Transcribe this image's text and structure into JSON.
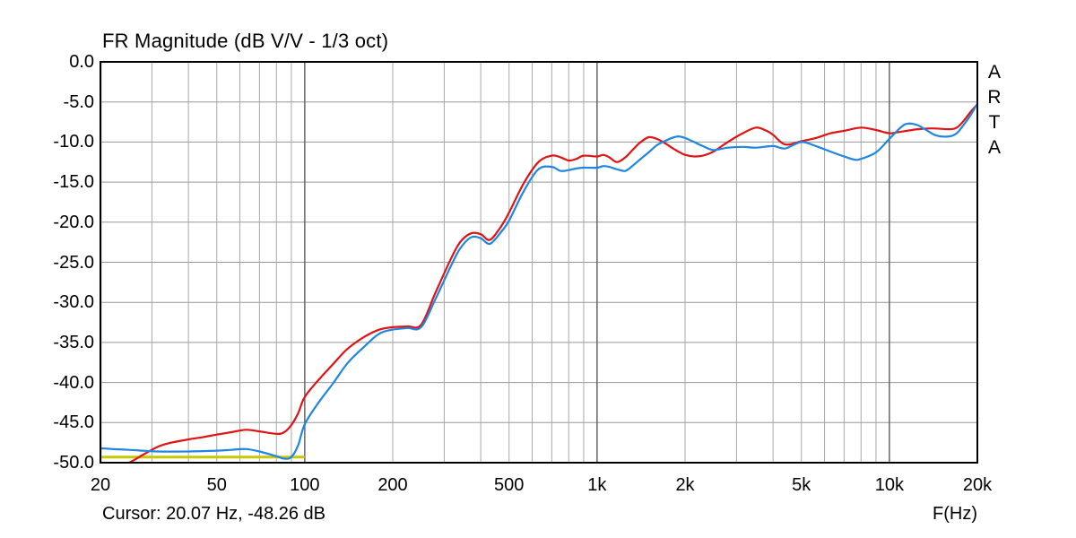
{
  "watermark": {
    "text": "ARTA"
  },
  "footer": {
    "cursor_readout": "Cursor: 20.07 Hz, -48.26 dB",
    "x_axis_label": "F(Hz)"
  },
  "colors": {
    "red_curve": "#e01212",
    "blue_curve": "#1f85e5",
    "cursor_yellow": "#c8c800",
    "grid_minor": "#a8a8a8",
    "grid_major": "#666666",
    "grid_horizontal": "#979797",
    "border": "#000000",
    "background": "#ffffff",
    "text": "#000000"
  },
  "chart_data": {
    "type": "line",
    "title": "FR Magnitude (dB V/V - 1/3 oct)",
    "xlabel": "F(Hz)",
    "ylabel": "dB V/V",
    "x_scale": "log",
    "xlim": [
      20,
      20000
    ],
    "ylim": [
      -50,
      0
    ],
    "grid": true,
    "legend_position": "none",
    "x_ticks": [
      {
        "f": 20,
        "label": "20"
      },
      {
        "f": 50,
        "label": "50"
      },
      {
        "f": 100,
        "label": "100"
      },
      {
        "f": 200,
        "label": "200"
      },
      {
        "f": 500,
        "label": "500"
      },
      {
        "f": 1000,
        "label": "1k"
      },
      {
        "f": 2000,
        "label": "2k"
      },
      {
        "f": 5000,
        "label": "5k"
      },
      {
        "f": 10000,
        "label": "10k"
      },
      {
        "f": 20000,
        "label": "20k"
      }
    ],
    "y_ticks": [
      {
        "db": 0,
        "label": "0.0"
      },
      {
        "db": -5,
        "label": "-5.0"
      },
      {
        "db": -10,
        "label": "-10.0"
      },
      {
        "db": -15,
        "label": "-15.0"
      },
      {
        "db": -20,
        "label": "-20.0"
      },
      {
        "db": -25,
        "label": "-25.0"
      },
      {
        "db": -30,
        "label": "-30.0"
      },
      {
        "db": -35,
        "label": "-35.0"
      },
      {
        "db": -40,
        "label": "-40.0"
      },
      {
        "db": -45,
        "label": "-45.0"
      },
      {
        "db": -50,
        "label": "-50.0"
      }
    ],
    "minor_gridlines_hz": [
      30,
      40,
      50,
      60,
      70,
      80,
      90,
      200,
      300,
      400,
      500,
      600,
      700,
      800,
      900,
      2000,
      3000,
      4000,
      5000,
      6000,
      7000,
      8000,
      9000
    ],
    "major_gridlines_hz": [
      100,
      1000,
      10000
    ],
    "horizontal_gridlines_db": [
      -5,
      -10,
      -15,
      -20,
      -25,
      -30,
      -35,
      -40,
      -45
    ],
    "cursor": {
      "freq_hz": 20.07,
      "level_db": -48.26
    },
    "marker_line": {
      "from_hz": 20,
      "to_hz": 100,
      "level_db": -49.3
    },
    "series": [
      {
        "name": "fr-curve-red",
        "color_key": "red_curve",
        "points": [
          [
            20,
            -50.8
          ],
          [
            22,
            -50.5
          ],
          [
            25,
            -50.0
          ],
          [
            28,
            -49.0
          ],
          [
            31.5,
            -48.0
          ],
          [
            35,
            -47.5
          ],
          [
            40,
            -47.1
          ],
          [
            45,
            -46.8
          ],
          [
            50,
            -46.5
          ],
          [
            56,
            -46.2
          ],
          [
            63,
            -45.9
          ],
          [
            70,
            -46.1
          ],
          [
            80,
            -46.4
          ],
          [
            85,
            -46.2
          ],
          [
            90,
            -45.3
          ],
          [
            95,
            -43.8
          ],
          [
            100,
            -41.8
          ],
          [
            112,
            -39.6
          ],
          [
            125,
            -37.7
          ],
          [
            140,
            -35.8
          ],
          [
            160,
            -34.3
          ],
          [
            180,
            -33.4
          ],
          [
            200,
            -33.1
          ],
          [
            225,
            -33.0
          ],
          [
            250,
            -32.8
          ],
          [
            280,
            -28.8
          ],
          [
            315,
            -24.7
          ],
          [
            340,
            -22.5
          ],
          [
            370,
            -21.4
          ],
          [
            400,
            -21.5
          ],
          [
            430,
            -22.2
          ],
          [
            470,
            -20.5
          ],
          [
            500,
            -18.8
          ],
          [
            560,
            -15.2
          ],
          [
            630,
            -12.5
          ],
          [
            700,
            -11.7
          ],
          [
            750,
            -11.9
          ],
          [
            800,
            -12.3
          ],
          [
            850,
            -12.1
          ],
          [
            900,
            -11.7
          ],
          [
            1000,
            -11.8
          ],
          [
            1050,
            -11.6
          ],
          [
            1100,
            -11.9
          ],
          [
            1170,
            -12.5
          ],
          [
            1250,
            -11.9
          ],
          [
            1330,
            -10.9
          ],
          [
            1400,
            -10.1
          ],
          [
            1500,
            -9.4
          ],
          [
            1600,
            -9.6
          ],
          [
            1700,
            -10.1
          ],
          [
            1800,
            -10.7
          ],
          [
            1900,
            -11.2
          ],
          [
            2000,
            -11.6
          ],
          [
            2150,
            -11.8
          ],
          [
            2300,
            -11.7
          ],
          [
            2500,
            -11.2
          ],
          [
            2800,
            -10.0
          ],
          [
            3150,
            -8.9
          ],
          [
            3500,
            -8.2
          ],
          [
            3800,
            -8.6
          ],
          [
            4000,
            -9.1
          ],
          [
            4400,
            -10.3
          ],
          [
            5000,
            -9.9
          ],
          [
            5600,
            -9.5
          ],
          [
            6300,
            -8.9
          ],
          [
            7000,
            -8.6
          ],
          [
            8000,
            -8.2
          ],
          [
            9000,
            -8.5
          ],
          [
            10000,
            -8.9
          ],
          [
            11000,
            -8.7
          ],
          [
            12500,
            -8.4
          ],
          [
            14000,
            -8.3
          ],
          [
            16000,
            -8.4
          ],
          [
            17000,
            -8.2
          ],
          [
            18000,
            -7.3
          ],
          [
            19000,
            -6.2
          ],
          [
            20000,
            -5.3
          ]
        ]
      },
      {
        "name": "fr-curve-blue",
        "color_key": "blue_curve",
        "points": [
          [
            20,
            -48.2
          ],
          [
            22,
            -48.3
          ],
          [
            25,
            -48.4
          ],
          [
            31.5,
            -48.6
          ],
          [
            40,
            -48.6
          ],
          [
            50,
            -48.5
          ],
          [
            56,
            -48.4
          ],
          [
            63,
            -48.3
          ],
          [
            70,
            -48.6
          ],
          [
            80,
            -49.2
          ],
          [
            85,
            -49.5
          ],
          [
            90,
            -49.3
          ],
          [
            95,
            -47.8
          ],
          [
            100,
            -45.2
          ],
          [
            112,
            -42.4
          ],
          [
            125,
            -40.1
          ],
          [
            140,
            -37.6
          ],
          [
            160,
            -35.5
          ],
          [
            180,
            -33.9
          ],
          [
            200,
            -33.4
          ],
          [
            225,
            -33.2
          ],
          [
            250,
            -33.1
          ],
          [
            280,
            -29.6
          ],
          [
            315,
            -25.6
          ],
          [
            340,
            -23.3
          ],
          [
            370,
            -21.9
          ],
          [
            400,
            -22.0
          ],
          [
            430,
            -22.7
          ],
          [
            470,
            -21.2
          ],
          [
            500,
            -19.8
          ],
          [
            560,
            -16.2
          ],
          [
            630,
            -13.4
          ],
          [
            700,
            -13.1
          ],
          [
            750,
            -13.6
          ],
          [
            800,
            -13.5
          ],
          [
            850,
            -13.3
          ],
          [
            900,
            -13.2
          ],
          [
            1000,
            -13.2
          ],
          [
            1050,
            -13.0
          ],
          [
            1100,
            -13.1
          ],
          [
            1170,
            -13.4
          ],
          [
            1250,
            -13.6
          ],
          [
            1330,
            -12.9
          ],
          [
            1400,
            -12.2
          ],
          [
            1500,
            -11.3
          ],
          [
            1600,
            -10.4
          ],
          [
            1700,
            -9.9
          ],
          [
            1800,
            -9.5
          ],
          [
            1900,
            -9.3
          ],
          [
            2000,
            -9.5
          ],
          [
            2150,
            -10.0
          ],
          [
            2300,
            -10.5
          ],
          [
            2500,
            -11.0
          ],
          [
            2800,
            -10.7
          ],
          [
            3150,
            -10.6
          ],
          [
            3500,
            -10.7
          ],
          [
            4000,
            -10.5
          ],
          [
            4400,
            -10.8
          ],
          [
            5000,
            -10.0
          ],
          [
            5600,
            -10.5
          ],
          [
            6300,
            -11.2
          ],
          [
            7000,
            -11.8
          ],
          [
            7600,
            -12.2
          ],
          [
            8000,
            -12.1
          ],
          [
            9000,
            -11.3
          ],
          [
            10000,
            -9.6
          ],
          [
            11000,
            -8.1
          ],
          [
            11600,
            -7.7
          ],
          [
            12500,
            -7.9
          ],
          [
            13500,
            -8.6
          ],
          [
            14500,
            -9.2
          ],
          [
            16000,
            -9.3
          ],
          [
            17000,
            -8.9
          ],
          [
            18000,
            -7.8
          ],
          [
            19000,
            -6.6
          ],
          [
            20000,
            -5.2
          ]
        ]
      }
    ]
  }
}
